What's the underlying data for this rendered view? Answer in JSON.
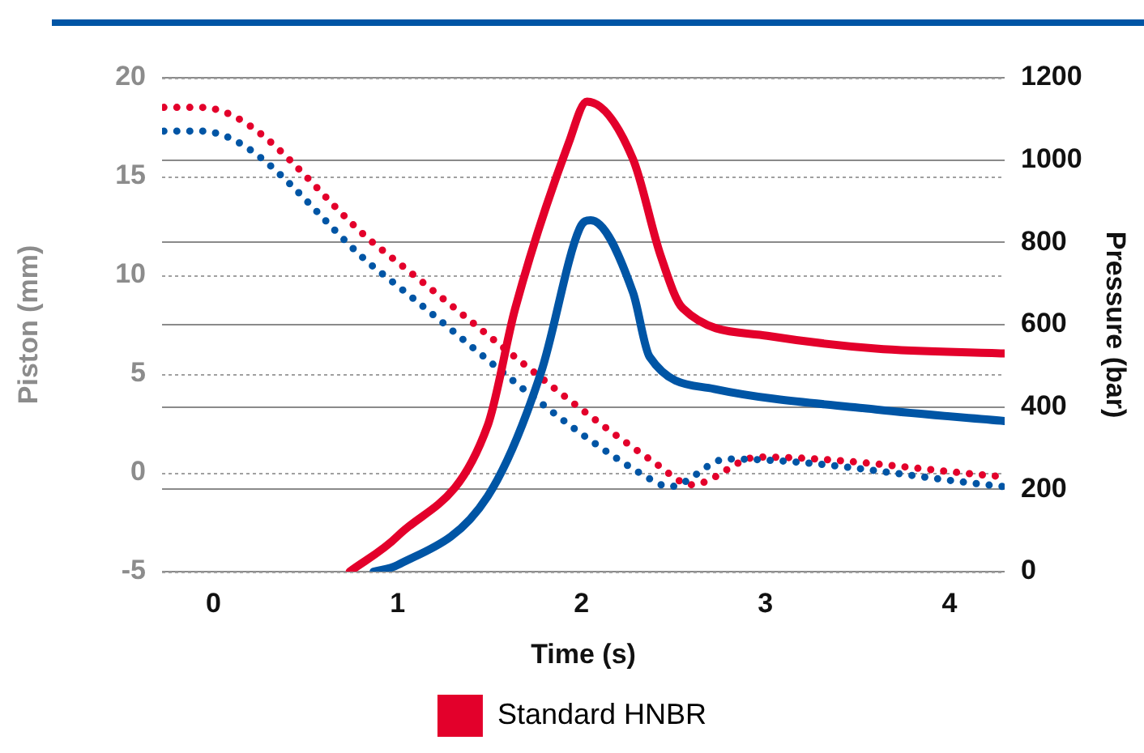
{
  "chart_data": {
    "type": "line",
    "xlabel": "Time (s)",
    "ylabel": "Piston (mm)",
    "y2label": "Pressure (bar)",
    "xlim": [
      -0.28,
      4.3
    ],
    "xticks": [
      0,
      1,
      2,
      3,
      4
    ],
    "ylim": [
      -5,
      20
    ],
    "yticks": [
      -5,
      0,
      5,
      10,
      15,
      20
    ],
    "y2lim": [
      0,
      1200
    ],
    "y2ticks": [
      0,
      200,
      400,
      600,
      800,
      1000,
      1200
    ],
    "grid": true,
    "legend": "bottom",
    "marker": "none",
    "series": [
      {
        "color": "#0055a5",
        "axis": "y2",
        "line_style": "solid",
        "x": [
          0.87,
          1.0,
          1.49,
          1.78,
          1.99,
          2.05,
          2.28,
          2.37,
          2.72,
          3.6,
          4.3
        ],
        "values": [
          0,
          16,
          183,
          484,
          834,
          854,
          678,
          522,
          444,
          394,
          366
        ]
      },
      {
        "name": "Standard HNBR",
        "color": "#e3002b",
        "axis": "y2",
        "line_style": "solid",
        "x": [
          0.74,
          1.0,
          1.49,
          1.64,
          1.93,
          2.03,
          2.28,
          2.43,
          2.55,
          3.01,
          3.6,
          4.3
        ],
        "values": [
          0,
          86,
          355,
          640,
          1041,
          1142,
          1002,
          768,
          640,
          573,
          542,
          530
        ]
      },
      {
        "color": "#0055a5",
        "axis": "y",
        "line_style": "dotted",
        "x": [
          -0.27,
          -0.07,
          0.9,
          2.37,
          2.48,
          2.79,
          4.3
        ],
        "values": [
          17.3,
          17.3,
          10.2,
          -0.3,
          -0.7,
          0.7,
          -0.7
        ]
      },
      {
        "color": "#e3002b",
        "axis": "y",
        "line_style": "dotted",
        "x": [
          -0.27,
          -0.07,
          0.9,
          2.4,
          2.6,
          2.96,
          4.3
        ],
        "values": [
          18.5,
          18.5,
          11.4,
          0.5,
          -0.6,
          0.8,
          -0.2
        ]
      }
    ]
  }
}
